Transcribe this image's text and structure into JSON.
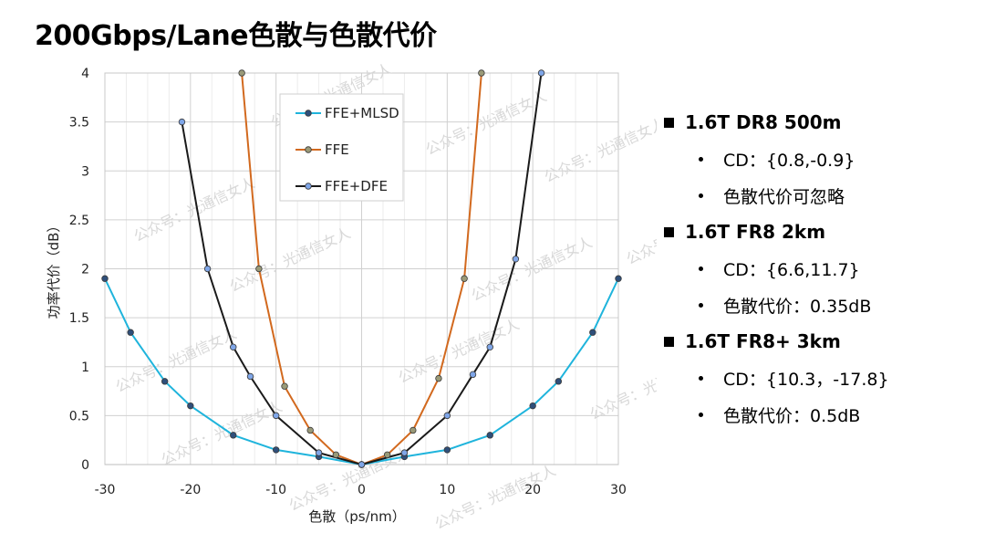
{
  "title": "200Gbps/Lane色散与色散代价",
  "watermark": "公众号：光通信女人",
  "notes": [
    {
      "heading": "1.6T DR8 500m",
      "items": [
        "CD：{0.8,-0.9}",
        "色散代价可忽略"
      ]
    },
    {
      "heading": "1.6T FR8 2km",
      "items": [
        "CD：{6.6,11.7}",
        "色散代价：0.35dB"
      ]
    },
    {
      "heading": "1.6T FR8+  3km",
      "items": [
        "CD：{10.3，-17.8}",
        "色散代价：0.5dB"
      ]
    }
  ],
  "chart_data": {
    "type": "line",
    "title": "",
    "xlabel": "色散（ps/nm）",
    "ylabel": "功率代价（dB）",
    "xlim": [
      -30,
      30
    ],
    "ylim": [
      0,
      4
    ],
    "xticks": [
      -30,
      -20,
      -10,
      0,
      10,
      20,
      30
    ],
    "yticks": [
      0,
      0.5,
      1,
      1.5,
      2,
      2.5,
      3,
      3.5,
      4
    ],
    "ytick_labels": [
      "0",
      "0.5",
      "1",
      "1.5",
      "2",
      "2.5",
      "3",
      "3.5",
      "4"
    ],
    "grid": true,
    "legend_position": "top-center",
    "series": [
      {
        "name": "FFE+MLSD",
        "color": "#1fb4dc",
        "marker_color": "#2f4f7a",
        "x": [
          -30,
          -27,
          -23,
          -20,
          -15,
          -10,
          -5,
          0,
          5,
          10,
          15,
          20,
          23,
          27,
          30
        ],
        "y": [
          1.9,
          1.35,
          0.85,
          0.6,
          0.3,
          0.15,
          0.08,
          0,
          0.08,
          0.15,
          0.3,
          0.6,
          0.85,
          1.35,
          1.9
        ]
      },
      {
        "name": "FFE",
        "color": "#d2691e",
        "marker_color": "#9a9a78",
        "x": [
          -14,
          -12,
          -9,
          -6,
          -3,
          0,
          3,
          6,
          9,
          12,
          14
        ],
        "y": [
          4,
          2,
          0.8,
          0.35,
          0.1,
          0,
          0.1,
          0.35,
          0.88,
          1.9,
          4
        ]
      },
      {
        "name": "FFE+DFE",
        "color": "#1a1a1a",
        "marker_color": "#7fa6e8",
        "x": [
          -21,
          -18,
          -15,
          -13,
          -10,
          -5,
          0,
          5,
          10,
          13,
          15,
          18,
          21
        ],
        "y": [
          3.5,
          2,
          1.2,
          0.9,
          0.5,
          0.12,
          0,
          0.12,
          0.5,
          0.92,
          1.2,
          2.1,
          4
        ]
      }
    ]
  }
}
